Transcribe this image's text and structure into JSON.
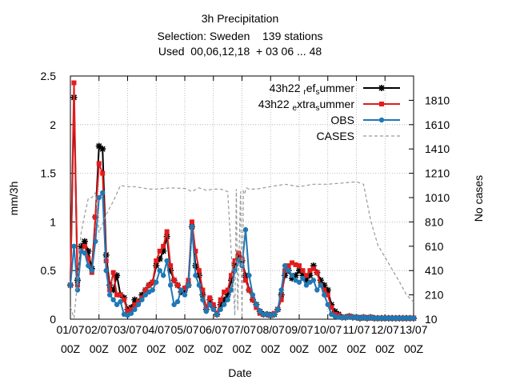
{
  "chart_data": {
    "type": "line",
    "title_lines": [
      "3h Precipitation",
      "Selection: Sweden    139 stations",
      "Used  00,06,12,18  + 03 06 ... 48"
    ],
    "xlabel": "Date",
    "ylabel": "mm/3h",
    "y2label": "No cases",
    "xlim": [
      0,
      12
    ],
    "ylim": [
      0,
      2.5
    ],
    "y2lim": [
      10,
      2010
    ],
    "x_tick_labels": [
      "01/07\n00Z",
      "02/07\n00Z",
      "03/07\n00Z",
      "04/07\n00Z",
      "05/07\n00Z",
      "06/07\n00Z",
      "07/07\n00Z",
      "08/07\n00Z",
      "09/07\n00Z",
      "10/07\n00Z",
      "11/07\n00Z",
      "12/07\n00Z",
      "13/07\n00Z"
    ],
    "y_ticks": [
      "0",
      "0.5",
      "1",
      "1.5",
      "2",
      "2.5"
    ],
    "y2_ticks": [
      "10",
      "210",
      "410",
      "610",
      "810",
      "1010",
      "1210",
      "1410",
      "1610",
      "1810"
    ],
    "grid": true,
    "legend_position": "top-right",
    "series": [
      {
        "name": "43h22 ref summer",
        "legend_text": "43h22 ",
        "legend_sub1": "r",
        "legend_mid": "ef",
        "legend_sub2": "s",
        "legend_end": "ummer",
        "color": "#000000",
        "marker": "star",
        "x": [
          0,
          0.125,
          0.25,
          0.375,
          0.5,
          0.625,
          0.75,
          0.875,
          1,
          1.125,
          1.25,
          1.375,
          1.5,
          1.625,
          1.75,
          1.875,
          2,
          2.125,
          2.25,
          2.375,
          2.5,
          2.625,
          2.75,
          2.875,
          3,
          3.125,
          3.25,
          3.375,
          3.5,
          3.625,
          3.75,
          3.875,
          4,
          4.125,
          4.25,
          4.375,
          4.5,
          4.625,
          4.75,
          4.875,
          5,
          5.125,
          5.25,
          5.375,
          5.5,
          5.625,
          5.75,
          5.875,
          6,
          6.125,
          6.25,
          6.375,
          6.5,
          6.625,
          6.75,
          6.875,
          7,
          7.125,
          7.25,
          7.375,
          7.5,
          7.625,
          7.75,
          7.875,
          8,
          8.125,
          8.25,
          8.375,
          8.5,
          8.625,
          8.75,
          8.875,
          9,
          9.125,
          9.25,
          9.375,
          9.5,
          9.625,
          9.75,
          9.875,
          10,
          10.125,
          10.25,
          10.375,
          10.5,
          10.625,
          10.75,
          10.875,
          11,
          11.125,
          11.25,
          11.375,
          11.5,
          11.625,
          11.75,
          11.875,
          12
        ],
        "y": [
          0.35,
          2.28,
          0.4,
          0.75,
          0.8,
          0.7,
          0.52,
          1.05,
          1.78,
          1.75,
          0.66,
          0.35,
          0.3,
          0.45,
          0.25,
          0.22,
          0.1,
          0.12,
          0.2,
          0.18,
          0.25,
          0.3,
          0.35,
          0.38,
          0.55,
          0.62,
          0.7,
          0.85,
          0.5,
          0.4,
          0.35,
          0.28,
          0.3,
          0.35,
          0.95,
          0.55,
          0.45,
          0.25,
          0.1,
          0.2,
          0.12,
          0.05,
          0.15,
          0.2,
          0.25,
          0.4,
          0.55,
          0.65,
          0.6,
          0.45,
          0.3,
          0.2,
          0.15,
          0.08,
          0.05,
          0.05,
          0.04,
          0.05,
          0.1,
          0.25,
          0.45,
          0.5,
          0.42,
          0.45,
          0.5,
          0.45,
          0.4,
          0.45,
          0.55,
          0.48,
          0.4,
          0.35,
          0.3,
          0.15,
          0.08,
          0.05,
          0.02,
          0.02,
          0.03,
          0.02,
          0.02,
          0.01,
          0.02,
          0.01,
          0.02,
          0.01,
          0.01,
          0.01,
          0.01,
          0.01,
          0.01,
          0.01,
          0.01,
          0.01,
          0.01,
          0.01,
          0.01
        ]
      },
      {
        "name": "43h22 extra summer",
        "legend_text": "43h22 ",
        "legend_sub1": "e",
        "legend_mid": "xtra",
        "legend_sub2": "s",
        "legend_end": "ummer",
        "color": "#e41a1c",
        "marker": "square",
        "x": [
          0,
          0.125,
          0.25,
          0.375,
          0.5,
          0.625,
          0.75,
          0.875,
          1,
          1.125,
          1.25,
          1.375,
          1.5,
          1.625,
          1.75,
          1.875,
          2,
          2.125,
          2.25,
          2.375,
          2.5,
          2.625,
          2.75,
          2.875,
          3,
          3.125,
          3.25,
          3.375,
          3.5,
          3.625,
          3.75,
          3.875,
          4,
          4.125,
          4.25,
          4.375,
          4.5,
          4.625,
          4.75,
          4.875,
          5,
          5.125,
          5.25,
          5.375,
          5.5,
          5.625,
          5.75,
          5.875,
          6,
          6.125,
          6.25,
          6.375,
          6.5,
          6.625,
          6.75,
          6.875,
          7,
          7.125,
          7.25,
          7.375,
          7.5,
          7.625,
          7.75,
          7.875,
          8,
          8.125,
          8.25,
          8.375,
          8.5,
          8.625,
          8.75,
          8.875,
          9,
          9.125,
          9.25,
          9.375,
          9.5,
          9.625,
          9.75,
          9.875,
          10,
          10.125,
          10.25,
          10.375,
          10.5,
          10.625,
          10.75,
          10.875,
          11,
          11.125,
          11.25,
          11.375,
          11.5,
          11.625,
          11.75,
          11.875,
          12
        ],
        "y": [
          0.35,
          2.43,
          0.35,
          0.7,
          0.75,
          0.62,
          0.48,
          1.05,
          1.6,
          1.5,
          0.6,
          0.3,
          0.48,
          0.25,
          0.25,
          0.2,
          0.08,
          0.1,
          0.15,
          0.18,
          0.22,
          0.3,
          0.35,
          0.38,
          0.6,
          0.7,
          0.75,
          0.9,
          0.55,
          0.4,
          0.35,
          0.3,
          0.32,
          0.4,
          1.0,
          0.7,
          0.5,
          0.3,
          0.12,
          0.22,
          0.15,
          0.05,
          0.2,
          0.28,
          0.3,
          0.45,
          0.6,
          0.68,
          0.62,
          0.4,
          0.3,
          0.2,
          0.12,
          0.06,
          0.05,
          0.05,
          0.04,
          0.06,
          0.1,
          0.2,
          0.5,
          0.55,
          0.58,
          0.56,
          0.55,
          0.5,
          0.45,
          0.5,
          0.52,
          0.48,
          0.35,
          0.3,
          0.25,
          0.12,
          0.05,
          0.04,
          0.02,
          0.02,
          0.03,
          0.02,
          0.02,
          0.01,
          0.02,
          0.01,
          0.02,
          0.01,
          0.01,
          0.01,
          0.01,
          0.01,
          0.01,
          0.01,
          0.01,
          0.01,
          0.01,
          0.01,
          0.01
        ]
      },
      {
        "name": "OBS",
        "legend_text": "OBS",
        "color": "#1f78b4",
        "marker": "circle",
        "x": [
          0,
          0.125,
          0.25,
          0.375,
          0.5,
          0.625,
          0.75,
          0.875,
          1,
          1.125,
          1.25,
          1.375,
          1.5,
          1.625,
          1.75,
          1.875,
          2,
          2.125,
          2.25,
          2.375,
          2.5,
          2.625,
          2.75,
          2.875,
          3,
          3.125,
          3.25,
          3.375,
          3.5,
          3.625,
          3.75,
          3.875,
          4,
          4.125,
          4.25,
          4.375,
          4.5,
          4.625,
          4.75,
          4.875,
          5,
          5.125,
          5.25,
          5.375,
          5.5,
          5.625,
          5.75,
          5.875,
          6,
          6.125,
          6.25,
          6.375,
          6.5,
          6.625,
          6.75,
          6.875,
          7,
          7.125,
          7.25,
          7.375,
          7.5,
          7.625,
          7.75,
          7.875,
          8,
          8.125,
          8.25,
          8.375,
          8.5,
          8.625,
          8.75,
          8.875,
          9,
          9.125,
          9.25,
          9.375,
          9.5,
          9.625,
          9.75,
          9.875,
          10,
          10.125,
          10.25,
          10.375,
          10.5,
          10.625,
          10.75,
          10.875,
          11,
          11.125,
          11.25,
          11.375,
          11.5,
          11.625,
          11.75,
          11.875,
          12
        ],
        "y": [
          0.35,
          0.75,
          0.3,
          0.7,
          0.68,
          0.55,
          0.5,
          0.8,
          1.25,
          1.3,
          0.5,
          0.25,
          0.2,
          0.15,
          0.18,
          0.05,
          0.04,
          0.06,
          0.1,
          0.15,
          0.2,
          0.25,
          0.28,
          0.3,
          0.38,
          0.5,
          0.45,
          0.6,
          0.35,
          0.15,
          0.18,
          0.3,
          0.25,
          0.35,
          0.95,
          0.45,
          0.35,
          0.2,
          0.08,
          0.15,
          0.1,
          0.05,
          0.1,
          0.15,
          0.2,
          0.3,
          0.5,
          0.6,
          0.55,
          0.92,
          0.45,
          0.25,
          0.15,
          0.08,
          0.05,
          0.05,
          0.04,
          0.05,
          0.1,
          0.3,
          0.55,
          0.5,
          0.45,
          0.4,
          0.38,
          0.42,
          0.35,
          0.38,
          0.4,
          0.3,
          0.35,
          0.25,
          0.15,
          0.05,
          0.03,
          0.02,
          0.02,
          0.02,
          0.02,
          0.02,
          0.02,
          0.01,
          0.02,
          0.01,
          0.02,
          0.01,
          0.01,
          0.01,
          0.01,
          0.01,
          0.01,
          0.01,
          0.01,
          0.01,
          0.01,
          0.01,
          0.01
        ]
      },
      {
        "name": "CASES",
        "legend_text": "CASES",
        "color": "#999999",
        "marker": "none",
        "dashed": true,
        "axis": "y2",
        "x": [
          0,
          0.125,
          0.25,
          0.375,
          0.5,
          0.625,
          0.75,
          0.875,
          1,
          1.25,
          1.5,
          1.75,
          2,
          2.25,
          2.5,
          2.75,
          3,
          3.5,
          4,
          4.25,
          4.5,
          4.75,
          5,
          5.25,
          5.5,
          5.75,
          5.8,
          5.85,
          5.95,
          6,
          6.05,
          6.1,
          6.15,
          6.25,
          6.5,
          7,
          7.5,
          8,
          8.5,
          9,
          9.5,
          10,
          10.25,
          10.5,
          10.75,
          11,
          11.25,
          11.5,
          11.75,
          12
        ],
        "y": [
          110,
          20,
          320,
          720,
          870,
          1000,
          1010,
          1050,
          720,
          870,
          980,
          1110,
          1100,
          1100,
          1090,
          1080,
          1080,
          1090,
          1085,
          1060,
          1090,
          1070,
          1080,
          1080,
          1060,
          40,
          1080,
          80,
          1060,
          20,
          1070,
          1050,
          1090,
          1080,
          1080,
          1100,
          1120,
          1100,
          1120,
          1120,
          1130,
          1140,
          1120,
          820,
          620,
          520,
          420,
          320,
          210,
          150
        ]
      }
    ]
  }
}
